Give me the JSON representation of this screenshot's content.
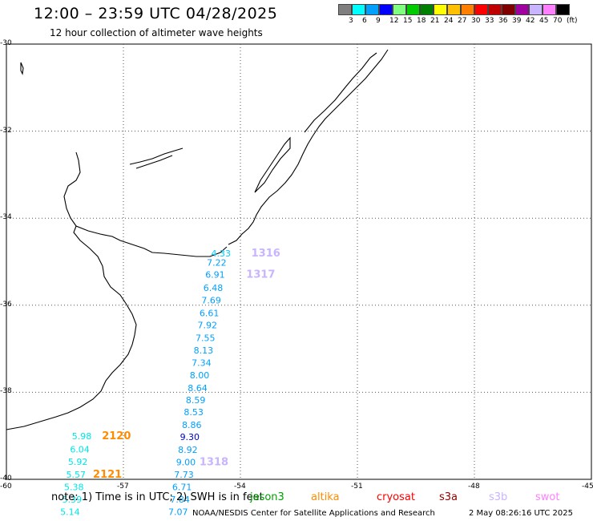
{
  "header": {
    "title": "12:00 – 23:59 UTC 04/28/2025",
    "subtitle": "12 hour collection of altimeter wave heights"
  },
  "legend": {
    "colors": [
      "#7f7f7f",
      "#00ffff",
      "#00a0ff",
      "#0000ff",
      "#80ff80",
      "#00cc00",
      "#008000",
      "#ffff00",
      "#ffc000",
      "#ff8000",
      "#ff0000",
      "#c00000",
      "#800000",
      "#a000a0",
      "#c8b4ff",
      "#ff80ff",
      "#000000"
    ],
    "labels": [
      "3",
      "6",
      "9",
      "12",
      "15",
      "18",
      "21",
      "24",
      "27",
      "30",
      "33",
      "36",
      "39",
      "42",
      "45",
      "70",
      "(ft)"
    ]
  },
  "axes": {
    "lat_labels": [
      "-30",
      "-32",
      "-34",
      "-36",
      "-38",
      "-40"
    ],
    "lon_labels": [
      "-60",
      "-57",
      "-54",
      "-51",
      "-48",
      "-45"
    ]
  },
  "map": {
    "observations": [
      {
        "label": "4.33",
        "lon": -54.75,
        "lat": -34.88,
        "color": "#00ccff"
      },
      {
        "label": "7.22",
        "lon": -54.86,
        "lat": -35.09,
        "color": "#00a0ff"
      },
      {
        "label": "6.91",
        "lon": -54.9,
        "lat": -35.37,
        "color": "#00a0ff"
      },
      {
        "label": "6.48",
        "lon": -54.95,
        "lat": -35.67,
        "color": "#00a0ff"
      },
      {
        "label": "7.69",
        "lon": -55.0,
        "lat": -35.96,
        "color": "#00a0ff"
      },
      {
        "label": "6.61",
        "lon": -55.05,
        "lat": -36.25,
        "color": "#00a0ff"
      },
      {
        "label": "7.92",
        "lon": -55.1,
        "lat": -36.53,
        "color": "#00a0ff"
      },
      {
        "label": "7.55",
        "lon": -55.15,
        "lat": -36.82,
        "color": "#00a0ff"
      },
      {
        "label": "8.13",
        "lon": -55.2,
        "lat": -37.11,
        "color": "#00a0ff"
      },
      {
        "label": "7.34",
        "lon": -55.25,
        "lat": -37.39,
        "color": "#00a0ff"
      },
      {
        "label": "8.00",
        "lon": -55.3,
        "lat": -37.68,
        "color": "#00a0ff"
      },
      {
        "label": "8.64",
        "lon": -55.35,
        "lat": -37.97,
        "color": "#00a0ff"
      },
      {
        "label": "8.59",
        "lon": -55.4,
        "lat": -38.25,
        "color": "#00a0ff"
      },
      {
        "label": "8.53",
        "lon": -55.45,
        "lat": -38.53,
        "color": "#00a0ff"
      },
      {
        "label": "8.86",
        "lon": -55.5,
        "lat": -38.82,
        "color": "#00a0ff"
      },
      {
        "label": "9.30",
        "lon": -55.55,
        "lat": -39.1,
        "color": "#0000cc"
      },
      {
        "label": "8.92",
        "lon": -55.6,
        "lat": -39.39,
        "color": "#00a0ff"
      },
      {
        "label": "9.00",
        "lon": -55.65,
        "lat": -39.68,
        "color": "#00a0ff"
      },
      {
        "label": "7.73",
        "lon": -55.7,
        "lat": -39.96,
        "color": "#00a0ff"
      },
      {
        "label": "6.71",
        "lon": -55.75,
        "lat": -40.25,
        "color": "#00a0ff"
      },
      {
        "label": "7.84",
        "lon": -55.8,
        "lat": -40.53,
        "color": "#00a0ff"
      },
      {
        "label": "7.07",
        "lon": -55.85,
        "lat": -40.82,
        "color": "#00a0ff"
      },
      {
        "label": "5.98",
        "lon": -58.32,
        "lat": -39.08,
        "color": "#00e5e5"
      },
      {
        "label": "6.04",
        "lon": -58.37,
        "lat": -39.38,
        "color": "#00e5e5"
      },
      {
        "label": "5.92",
        "lon": -58.42,
        "lat": -39.67,
        "color": "#00e5e5"
      },
      {
        "label": "5.57",
        "lon": -58.47,
        "lat": -39.96,
        "color": "#00e5e5"
      },
      {
        "label": "5.38",
        "lon": -58.52,
        "lat": -40.25,
        "color": "#00e5e5"
      },
      {
        "label": "5.39",
        "lon": -58.57,
        "lat": -40.53,
        "color": "#00e5e5"
      },
      {
        "label": "5.14",
        "lon": -58.62,
        "lat": -40.82,
        "color": "#00e5e5"
      }
    ],
    "passes": [
      {
        "label": "1316",
        "lon": -53.72,
        "lat": -34.88,
        "color": "#c8b4ff"
      },
      {
        "label": "1317",
        "lon": -53.85,
        "lat": -35.37,
        "color": "#c8b4ff"
      },
      {
        "label": "1318",
        "lon": -55.05,
        "lat": -39.68,
        "color": "#c8b4ff"
      },
      {
        "label": "2120",
        "lon": -57.55,
        "lat": -39.08,
        "color": "#ff8c00"
      },
      {
        "label": "2121",
        "lon": -57.78,
        "lat": -39.96,
        "color": "#ff8c00"
      }
    ]
  },
  "footer": {
    "note": "note:  1) Time is in UTC; 2) SWH is in feet",
    "satellites": [
      {
        "name": "jason3",
        "color": "#00a000"
      },
      {
        "name": "altika",
        "color": "#ff8c00"
      },
      {
        "name": "cryosat",
        "color": "#ff0000"
      },
      {
        "name": "s3a",
        "color": "#8b0000"
      },
      {
        "name": "s3b",
        "color": "#c8b4ff"
      },
      {
        "name": "swot",
        "color": "#ff80ff"
      }
    ],
    "credit": "NOAA/NESDIS Center for Satellite Applications and Research",
    "timestamp": "2 May 08:26:16 UTC 2025"
  }
}
